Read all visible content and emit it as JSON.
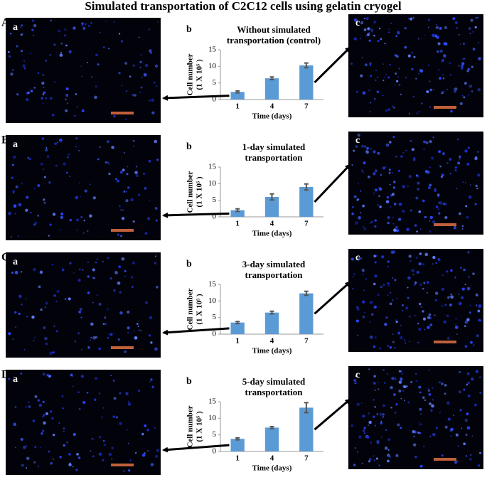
{
  "figure": {
    "title": "Simulated transportation of C2C12 cells using gelatin cryogel",
    "panels": [
      {
        "label": "A",
        "left_label": "a",
        "chart_label": "b",
        "right_label": "c"
      },
      {
        "label": "B",
        "left_label": "a",
        "chart_label": "b",
        "right_label": "c"
      },
      {
        "label": "C",
        "left_label": "a",
        "chart_label": "b",
        "right_label": "c"
      },
      {
        "label": "D",
        "left_label": "a",
        "chart_label": "b",
        "right_label": "c"
      }
    ]
  },
  "chart_data": [
    {
      "type": "bar",
      "title": [
        "Without simulated",
        "transportation (control)"
      ],
      "ylabel": [
        "Cell number",
        "(1 X 10⁵ )"
      ],
      "xlabel": "Time (days)",
      "categories": [
        "1",
        "4",
        "7"
      ],
      "series": [
        {
          "color": "#5b9bd5",
          "values": [
            2.3,
            6.4,
            10.3
          ],
          "errors": [
            0.3,
            0.4,
            0.7
          ]
        }
      ],
      "ylim": [
        0,
        15
      ],
      "yticks": [
        0,
        5,
        10,
        15
      ]
    },
    {
      "type": "bar",
      "title": [
        "1-day simulated",
        "transportation"
      ],
      "ylabel": [
        "Cell number",
        "(1 X 10⁵ )"
      ],
      "xlabel": "Time (days)",
      "categories": [
        "1",
        "4",
        "7"
      ],
      "series": [
        {
          "color": "#5b9bd5",
          "values": [
            2,
            6,
            9
          ],
          "errors": [
            0.4,
            0.9,
            0.9
          ]
        }
      ],
      "ylim": [
        0,
        15
      ],
      "yticks": [
        0,
        5,
        10,
        15
      ]
    },
    {
      "type": "bar",
      "title": [
        "3-day simulated",
        "transportation"
      ],
      "ylabel": [
        "Cell number",
        "(1 X 10⁵ )"
      ],
      "xlabel": "Time (days)",
      "categories": [
        "1",
        "4",
        "7"
      ],
      "series": [
        {
          "color": "#5b9bd5",
          "values": [
            3.5,
            6.5,
            12.3
          ],
          "errors": [
            0.3,
            0.4,
            0.6
          ]
        }
      ],
      "ylim": [
        0,
        15
      ],
      "yticks": [
        0,
        5,
        10,
        15
      ]
    },
    {
      "type": "bar",
      "title": [
        "5-day simulated",
        "transportation"
      ],
      "ylabel": [
        "Cell number",
        "(1 X 10⁵ )"
      ],
      "xlabel": "Time (days)",
      "categories": [
        "1",
        "4",
        "7"
      ],
      "series": [
        {
          "color": "#5b9bd5",
          "values": [
            3.8,
            7.2,
            13.2
          ],
          "errors": [
            0.3,
            0.3,
            1.5
          ]
        }
      ],
      "ylim": [
        0,
        15
      ],
      "yticks": [
        0,
        5,
        10,
        15
      ]
    }
  ]
}
